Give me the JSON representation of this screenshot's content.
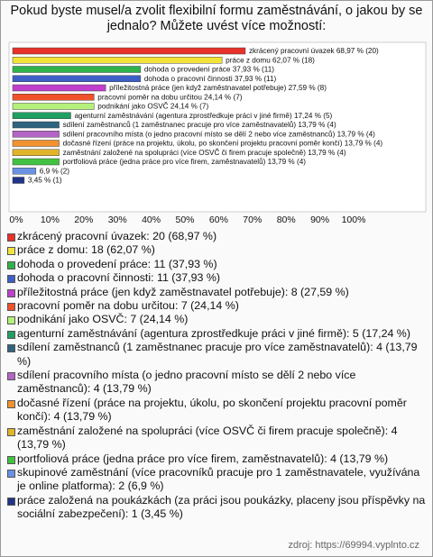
{
  "chart_data": {
    "type": "bar",
    "orientation": "horizontal",
    "title": "Pokud byste musel/a zvolit flexibilní formu zaměstnávání, o jakou by se jednalo? Můžete uvést více možností:",
    "categories": [
      "zkrácený pracovní úvazek",
      "práce z domu",
      "dohoda o provedení práce",
      "dohoda o pracovní činnosti",
      "příležitostná práce (jen když zaměstnavatel potřebuje)",
      "pracovní poměr na dobu určitou",
      "podnikání jako OSVČ",
      "agenturní zaměstnávání (agentura zprostředkuje práci v jiné firmě)",
      "sdílení zaměstnanců (1 zaměstnanec pracuje pro více zaměstnavatelů)",
      "sdílení pracovního místa (o jedno pracovní místo se dělí 2 nebo více zaměstnanců)",
      "dočasné řízení (práce na projektu, úkolu, po skončení projektu pracovní poměr končí)",
      "zaměstnání založené na spolupráci (více OSVČ či firem pracuje společně)",
      "portfoliová práce (jedna práce pro více firem, zaměstnavatelů)",
      null,
      null
    ],
    "values": [
      68.97,
      62.07,
      37.93,
      37.93,
      27.59,
      24.14,
      24.14,
      17.24,
      13.79,
      13.79,
      13.79,
      13.79,
      13.79,
      6.9,
      3.45
    ],
    "value_labels": [
      "68,97 % (20)",
      "62,07 % (18)",
      "37,93 % (11)",
      "37,93 % (11)",
      "27,59 % (8)",
      "24,14 % (7)",
      "24,14 % (7)",
      "17,24 % (5)",
      "13,79 % (4)",
      "13,79 % (4)",
      "13,79 % (4)",
      "13,79 % (4)",
      "13,79 % (4)",
      "6,9 % (2)",
      "3,45 % (1)"
    ],
    "colors": [
      "#e8312a",
      "#f2e33a",
      "#2fb34a",
      "#3c5fc6",
      "#c03fcc",
      "#f0522a",
      "#b4f07a",
      "#20a062",
      "#2f6480",
      "#b464c4",
      "#f0922e",
      "#e2b42a",
      "#42c242",
      "#6a92e4",
      "#223488"
    ],
    "legend_labels": [
      "zkrácený pracovní úvazek: 20 (68,97 %)",
      "práce z domu: 18 (62,07 %)",
      "dohoda o provedení práce: 11 (37,93 %)",
      "dohoda o pracovní činnosti: 11 (37,93 %)",
      "příležitostná práce (jen když zaměstnavatel potřebuje): 8 (27,59 %)",
      "pracovní poměr na dobu určitou: 7 (24,14 %)",
      "podnikání jako OSVČ: 7 (24,14 %)",
      "agenturní zaměstnávání (agentura zprostředkuje práci v jiné firmě): 5 (17,24 %)",
      "sdílení zaměstnanců (1 zaměstnanec pracuje pro více zaměstnavatelů): 4 (13,79 %)",
      "sdílení pracovního místa (o jedno pracovní místo se dělí 2 nebo více zaměstnanců): 4 (13,79 %)",
      "dočasné řízení (práce na projektu, úkolu, po skončení projektu pracovní poměr končí): 4 (13,79 %)",
      "zaměstnání založené na spolupráci (více OSVČ či firem pracuje společně): 4 (13,79 %)",
      "portfoliová práce (jedna práce pro více firem, zaměstnavatelů): 4 (13,79 %)",
      "skupinové zaměstnání (více pracovníků pracuje pro 1 zaměstnavatele, využívána je online platforma): 2 (6,9 %)",
      "práce založená na poukázkách (za práci jsou poukázky, placeny jsou příspěvky na sociální zabezpečení): 1 (3,45 %)"
    ],
    "xlim": [
      0,
      100
    ],
    "xticks": [
      {
        "value": 0,
        "label": "0%"
      },
      {
        "value": 10,
        "label": "10%"
      },
      {
        "value": 20,
        "label": "20%"
      },
      {
        "value": 30,
        "label": "30%"
      },
      {
        "value": 40,
        "label": "40%"
      },
      {
        "value": 50,
        "label": "50%"
      },
      {
        "value": 60,
        "label": "60%"
      },
      {
        "value": 70,
        "label": "70%"
      },
      {
        "value": 80,
        "label": "80%"
      },
      {
        "value": 90,
        "label": "90%"
      },
      {
        "value": 100,
        "label": "100%"
      }
    ],
    "source": "zdroj: https://69994.vyplnto.cz"
  }
}
